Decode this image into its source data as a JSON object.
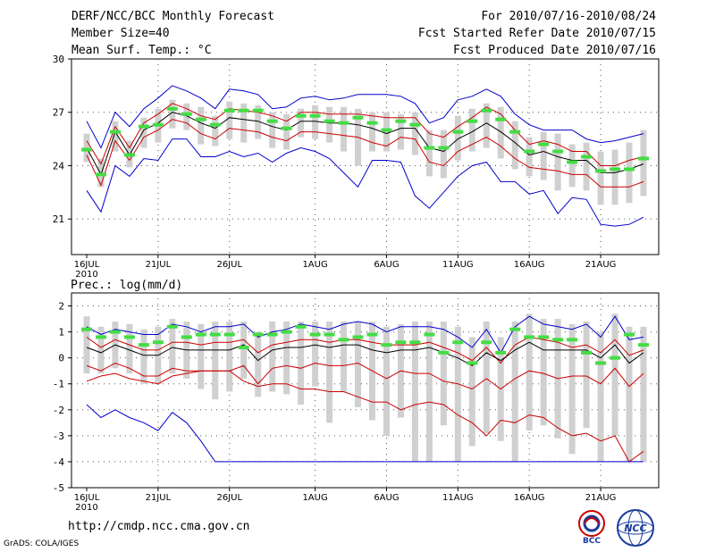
{
  "header": {
    "title": "DERF/NCC/BCC Monthly Forecast",
    "member_size": "Member Size=40",
    "variable": "Mean Surf. Temp.: °C",
    "period": "For 2010/07/16-2010/08/24",
    "started": "Fcst Started Refer Date 2010/07/15",
    "produced": "Fcst Produced Date 2010/07/16"
  },
  "footer": {
    "url": "http://cmdp.ncc.cma.gov.cn",
    "grads": "GrADS: COLA/IGES"
  },
  "logos": {
    "bcc": "BCC",
    "ncc": "NCC"
  },
  "colors": {
    "max_line": "#0000cc",
    "std_line": "#cc0000",
    "mean_line": "#000000",
    "median_bar": "#44dd44",
    "range_bar": "#d0d0d0"
  },
  "chart_data": [
    {
      "type": "line",
      "title": "Mean Surf. Temp.: °C",
      "ylim": [
        19,
        30
      ],
      "yticks": [
        "21",
        "24",
        "27",
        "30"
      ],
      "xlabels": [
        "16JUL",
        "21JUL",
        "26JUL",
        "1AUG",
        "6AUG",
        "11AUG",
        "16AUG",
        "21AUG"
      ],
      "xlabel_positions": [
        0,
        5,
        10,
        16,
        21,
        26,
        31,
        36
      ],
      "year_label": "2010",
      "days": 40,
      "series": [
        {
          "name": "max",
          "values": [
            26.5,
            25.0,
            27.0,
            26.2,
            27.2,
            27.8,
            28.5,
            28.2,
            27.8,
            27.2,
            28.3,
            28.2,
            28.0,
            27.2,
            27.3,
            27.8,
            27.9,
            27.7,
            27.8,
            28.0,
            28.0,
            28.0,
            27.9,
            27.5,
            26.4,
            26.7,
            27.7,
            27.9,
            28.3,
            27.9,
            26.9,
            26.3,
            26.0,
            26.0,
            26.0,
            25.5,
            25.3,
            25.4,
            25.6,
            25.8
          ]
        },
        {
          "name": "upper_std",
          "values": [
            25.4,
            24.1,
            26.2,
            25.0,
            26.4,
            26.9,
            27.5,
            27.2,
            26.8,
            26.6,
            27.2,
            27.1,
            27.0,
            26.8,
            26.5,
            27.0,
            27.0,
            26.9,
            26.9,
            26.9,
            26.8,
            26.7,
            26.7,
            26.7,
            25.8,
            25.6,
            26.2,
            26.7,
            27.3,
            26.9,
            26.0,
            25.2,
            25.4,
            25.2,
            24.8,
            24.8,
            24.0,
            24.0,
            24.3,
            24.5
          ]
        },
        {
          "name": "mean",
          "values": [
            25.0,
            23.5,
            25.9,
            24.6,
            26.0,
            26.4,
            27.0,
            26.8,
            26.4,
            26.1,
            26.7,
            26.6,
            26.5,
            26.2,
            26.0,
            26.5,
            26.5,
            26.4,
            26.4,
            26.3,
            26.1,
            25.8,
            26.1,
            26.1,
            25.0,
            24.8,
            25.5,
            25.9,
            26.4,
            25.9,
            25.3,
            24.6,
            24.8,
            24.5,
            24.3,
            24.3,
            23.6,
            23.6,
            23.8,
            24.1
          ]
        },
        {
          "name": "lower_std",
          "values": [
            24.6,
            22.9,
            25.4,
            24.3,
            25.6,
            26.0,
            26.6,
            26.4,
            25.8,
            25.5,
            26.1,
            26.0,
            25.9,
            25.6,
            25.4,
            25.9,
            25.9,
            25.8,
            25.7,
            25.6,
            25.3,
            25.1,
            25.6,
            25.5,
            24.2,
            24.0,
            24.8,
            25.2,
            25.6,
            25.1,
            24.4,
            23.9,
            23.8,
            23.7,
            23.5,
            23.5,
            22.8,
            22.8,
            22.8,
            23.1
          ]
        },
        {
          "name": "min",
          "values": [
            22.6,
            21.4,
            24.0,
            23.4,
            24.4,
            24.3,
            25.5,
            25.5,
            24.5,
            24.5,
            24.8,
            24.5,
            24.7,
            24.2,
            24.7,
            25.0,
            24.8,
            24.4,
            23.6,
            22.8,
            24.3,
            24.3,
            24.2,
            22.3,
            21.6,
            22.5,
            23.4,
            24.0,
            24.2,
            23.1,
            23.1,
            22.4,
            22.6,
            21.3,
            22.2,
            22.1,
            20.7,
            20.6,
            20.7,
            21.1
          ]
        },
        {
          "name": "median",
          "values": [
            24.9,
            23.5,
            25.9,
            24.6,
            26.2,
            26.3,
            27.2,
            26.9,
            26.6,
            26.3,
            27.1,
            27.1,
            27.1,
            26.5,
            26.1,
            26.8,
            26.8,
            26.5,
            26.4,
            26.7,
            26.4,
            26.0,
            26.5,
            26.3,
            25.0,
            25.0,
            25.9,
            26.5,
            27.1,
            26.6,
            25.9,
            24.8,
            25.2,
            24.8,
            24.2,
            24.5,
            23.7,
            23.8,
            23.8,
            24.4
          ]
        }
      ],
      "range_box": {
        "q_low": [
          24.2,
          22.8,
          24.8,
          23.9,
          25.0,
          25.3,
          26.1,
          26.0,
          25.2,
          25.1,
          25.5,
          25.3,
          25.5,
          25.0,
          24.9,
          25.6,
          25.5,
          25.3,
          24.8,
          24.0,
          24.8,
          24.8,
          24.9,
          24.6,
          23.4,
          23.3,
          24.3,
          24.8,
          25.0,
          24.4,
          23.8,
          23.4,
          23.2,
          22.6,
          22.8,
          22.6,
          21.8,
          21.8,
          21.9,
          22.3
        ],
        "q_high": [
          25.8,
          24.4,
          26.5,
          25.4,
          26.7,
          27.2,
          27.7,
          27.5,
          27.3,
          26.8,
          27.6,
          27.5,
          27.4,
          27.0,
          26.9,
          27.2,
          27.4,
          27.3,
          27.3,
          27.2,
          27.0,
          27.0,
          26.9,
          27.0,
          26.0,
          26.0,
          26.8,
          27.2,
          27.5,
          27.3,
          26.5,
          25.6,
          25.9,
          25.8,
          25.2,
          25.3,
          24.8,
          24.9,
          25.3,
          26.0
        ]
      }
    },
    {
      "type": "line",
      "title": "Prec.: log(mm/d)",
      "ylim": [
        -5,
        2.5
      ],
      "yticks": [
        "-5",
        "-4",
        "-3",
        "-2",
        "-1",
        "0",
        "1",
        "2"
      ],
      "xlabels": [
        "16JUL",
        "21JUL",
        "26JUL",
        "1AUG",
        "6AUG",
        "11AUG",
        "16AUG",
        "21AUG"
      ],
      "xlabel_positions": [
        0,
        5,
        10,
        16,
        21,
        26,
        31,
        36
      ],
      "year_label": "2010",
      "days": 40,
      "series": [
        {
          "name": "max",
          "values": [
            1.2,
            0.9,
            1.1,
            1.0,
            0.9,
            0.9,
            1.3,
            1.2,
            1.0,
            1.2,
            1.2,
            1.3,
            0.8,
            1.0,
            1.1,
            1.3,
            1.2,
            1.1,
            1.3,
            1.4,
            1.3,
            1.0,
            1.2,
            1.2,
            1.2,
            1.1,
            0.8,
            0.4,
            1.1,
            0.2,
            1.2,
            1.6,
            1.3,
            1.2,
            1.1,
            1.3,
            0.8,
            1.6,
            0.7,
            0.8
          ]
        },
        {
          "name": "upper_std",
          "values": [
            0.8,
            0.4,
            0.7,
            0.5,
            0.3,
            0.3,
            0.6,
            0.6,
            0.5,
            0.6,
            0.6,
            0.7,
            0.2,
            0.5,
            0.6,
            0.7,
            0.7,
            0.6,
            0.7,
            0.7,
            0.6,
            0.5,
            0.5,
            0.5,
            0.6,
            0.4,
            0.2,
            -0.1,
            0.4,
            -0.2,
            0.5,
            0.8,
            0.7,
            0.6,
            0.4,
            0.5,
            0.2,
            0.7,
            0.1,
            0.3
          ]
        },
        {
          "name": "mean",
          "values": [
            0.4,
            0.2,
            0.5,
            0.3,
            0.1,
            0.1,
            0.4,
            0.3,
            0.3,
            0.3,
            0.3,
            0.5,
            -0.1,
            0.3,
            0.4,
            0.4,
            0.5,
            0.4,
            0.5,
            0.5,
            0.3,
            0.2,
            0.3,
            0.3,
            0.4,
            0.2,
            0.0,
            -0.3,
            0.2,
            -0.1,
            0.3,
            0.6,
            0.3,
            0.3,
            0.3,
            0.3,
            0.0,
            0.5,
            -0.2,
            0.2
          ]
        },
        {
          "name": "lower_std",
          "values": [
            -0.3,
            -0.5,
            -0.2,
            -0.4,
            -0.7,
            -0.7,
            -0.4,
            -0.5,
            -0.5,
            -0.5,
            -0.5,
            -0.3,
            -1.0,
            -0.4,
            -0.3,
            -0.4,
            -0.2,
            -0.3,
            -0.3,
            -0.2,
            -0.5,
            -0.8,
            -0.5,
            -0.6,
            -0.6,
            -0.9,
            -1.0,
            -1.2,
            -0.8,
            -1.2,
            -0.8,
            -0.5,
            -0.6,
            -0.8,
            -0.7,
            -0.7,
            -1.0,
            -0.4,
            -1.1,
            -0.6
          ]
        },
        {
          "name": "min_std",
          "values": [
            -0.9,
            -0.7,
            -0.6,
            -0.8,
            -0.9,
            -1.0,
            -0.7,
            -0.6,
            -0.5,
            -0.5,
            -0.5,
            -0.9,
            -1.1,
            -1.0,
            -1.0,
            -1.2,
            -1.2,
            -1.3,
            -1.3,
            -1.5,
            -1.7,
            -1.7,
            -2.0,
            -1.8,
            -1.7,
            -1.8,
            -2.2,
            -2.5,
            -3.0,
            -2.4,
            -2.5,
            -2.2,
            -2.3,
            -2.7,
            -3.0,
            -2.9,
            -3.2,
            -3.0,
            -4.0,
            -3.6
          ]
        },
        {
          "name": "min",
          "values": [
            -1.8,
            -2.3,
            -2.0,
            -2.3,
            -2.5,
            -2.8,
            -2.1,
            -2.5,
            -3.2,
            -4.0,
            -4.0,
            -4.0,
            -4.0,
            -4.0,
            -4.0,
            -4.0,
            -4.0,
            -4.0,
            -4.0,
            -4.0,
            -4.0,
            -4.0,
            -4.0,
            -4.0,
            -4.0,
            -4.0,
            -4.0,
            -4.0,
            -4.0,
            -4.0,
            -4.0,
            -4.0,
            -4.0,
            -4.0,
            -4.0,
            -4.0,
            -4.0,
            -4.0,
            -4.0,
            -4.0
          ]
        },
        {
          "name": "median",
          "values": [
            1.1,
            0.8,
            1.0,
            0.8,
            0.5,
            0.6,
            1.2,
            0.8,
            0.9,
            0.9,
            0.9,
            0.4,
            0.9,
            0.9,
            1.0,
            1.2,
            0.9,
            0.9,
            0.7,
            0.8,
            0.9,
            0.5,
            0.6,
            0.6,
            0.9,
            0.2,
            0.6,
            -0.2,
            0.6,
            0.2,
            1.1,
            0.8,
            0.8,
            0.7,
            0.7,
            0.2,
            -0.2,
            0.0,
            0.9,
            0.5
          ]
        }
      ],
      "range_box": {
        "q_low": [
          -0.6,
          -0.6,
          -0.4,
          -0.6,
          -1.0,
          -1.0,
          -0.6,
          -0.8,
          -1.2,
          -1.6,
          -1.3,
          -0.8,
          -1.5,
          -1.3,
          -1.4,
          -1.8,
          -1.1,
          -2.5,
          -1.3,
          -1.9,
          -2.4,
          -3.0,
          -2.3,
          -4.0,
          -4.0,
          -2.6,
          -4.0,
          -3.4,
          -2.9,
          -3.2,
          -4.0,
          -2.8,
          -2.6,
          -3.1,
          -3.7,
          -2.7,
          -4.0,
          -3.0,
          -4.0,
          -4.0
        ],
        "q_high": [
          1.6,
          1.2,
          1.4,
          1.3,
          1.1,
          1.2,
          1.5,
          1.4,
          1.3,
          1.4,
          1.4,
          1.4,
          1.0,
          1.4,
          1.4,
          1.4,
          1.4,
          1.4,
          1.4,
          1.4,
          1.4,
          1.2,
          1.3,
          1.4,
          1.4,
          1.4,
          1.2,
          0.8,
          1.4,
          0.8,
          1.4,
          1.7,
          1.5,
          1.5,
          1.3,
          1.4,
          1.0,
          1.7,
          1.2,
          1.2
        ]
      }
    }
  ]
}
